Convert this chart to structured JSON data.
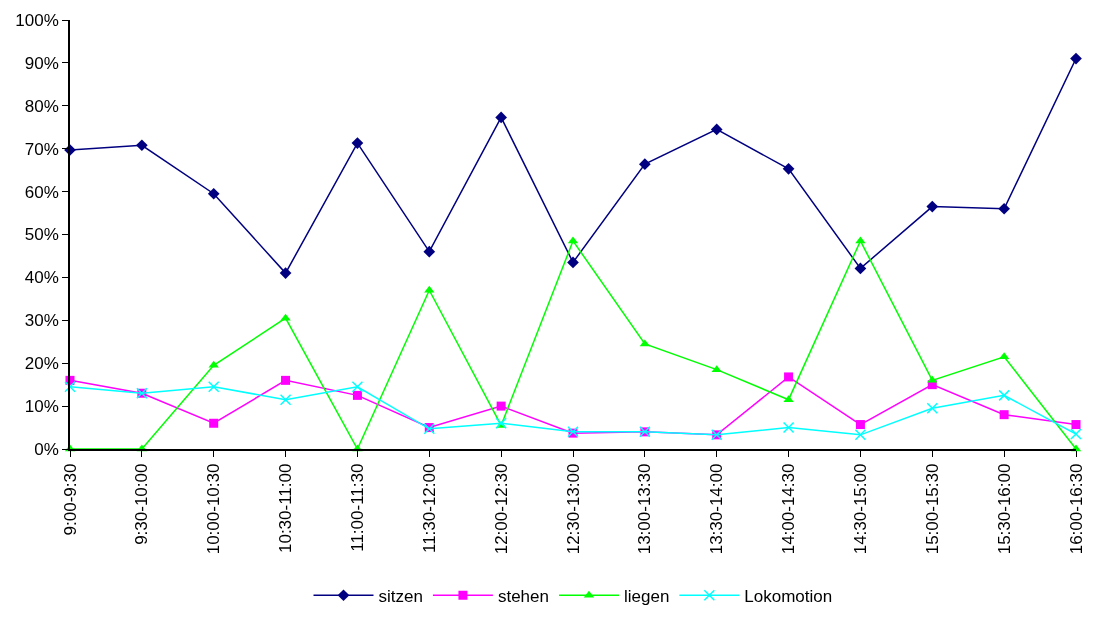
{
  "chart_data": {
    "type": "line",
    "categories": [
      "9:00-9:30",
      "9:30-10:00",
      "10:00-10:30",
      "10:30-11:00",
      "11:00-11:30",
      "11:30-12:00",
      "12:00-12:30",
      "12:30-13:00",
      "13:00-13:30",
      "13:30-14:00",
      "14:00-14:30",
      "14:30-15:00",
      "15:00-15:30",
      "15:30-16:00",
      "16:00-16:30"
    ],
    "series": [
      {
        "name": "sitzen",
        "color": "#000080",
        "marker": "diamond",
        "values": [
          69.7,
          70.8,
          59.5,
          41,
          71.3,
          46,
          77.3,
          43.5,
          66.4,
          74.5,
          65.3,
          42.1,
          56.5,
          56,
          91
        ]
      },
      {
        "name": "stehen",
        "color": "#ff00ff",
        "marker": "square",
        "values": [
          16,
          13,
          6,
          16,
          12.5,
          5,
          10,
          3.7,
          4,
          3.3,
          16.8,
          5.7,
          15,
          8,
          5.7
        ]
      },
      {
        "name": "liegen",
        "color": "#00ff00",
        "marker": "triangle",
        "values": [
          0,
          0,
          19.5,
          30.5,
          0,
          37,
          5.5,
          48.5,
          24.5,
          18.5,
          11.5,
          48.5,
          16,
          21.5,
          0
        ]
      },
      {
        "name": "Lokomotion",
        "color": "#00ffff",
        "marker": "cross",
        "values": [
          14.5,
          13,
          14.5,
          11.5,
          14.5,
          4.7,
          6,
          4,
          4,
          3.3,
          5,
          3.3,
          9.5,
          12.5,
          3.5
        ]
      }
    ],
    "ylim": [
      0,
      100
    ],
    "yticks": [
      {
        "value": 0,
        "label": "0%"
      },
      {
        "value": 10,
        "label": "10%"
      },
      {
        "value": 20,
        "label": "20%"
      },
      {
        "value": 30,
        "label": "30%"
      },
      {
        "value": 40,
        "label": "40%"
      },
      {
        "value": 50,
        "label": "50%"
      },
      {
        "value": 60,
        "label": "60%"
      },
      {
        "value": 70,
        "label": "70%"
      },
      {
        "value": 80,
        "label": "80%"
      },
      {
        "value": 90,
        "label": "90%"
      },
      {
        "value": 100,
        "label": "100%"
      }
    ],
    "grid": false,
    "legend": "bottom"
  }
}
